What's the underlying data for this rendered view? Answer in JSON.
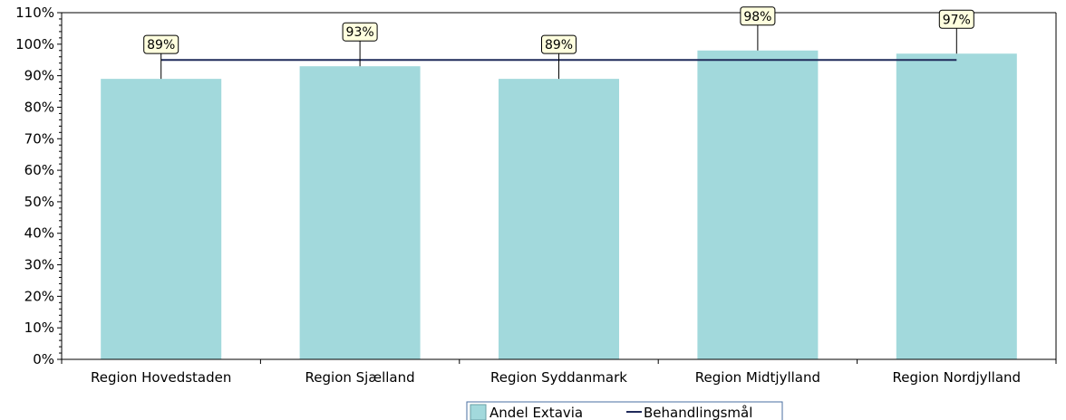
{
  "chart_data": {
    "type": "bar",
    "categories": [
      "Region Hovedstaden",
      "Region Sjælland",
      "Region Syddanmark",
      "Region Midtjylland",
      "Region Nordjylland"
    ],
    "series": [
      {
        "name": "Andel Extavia",
        "type": "bar",
        "values": [
          89,
          93,
          89,
          98,
          97
        ],
        "data_labels": [
          "89%",
          "93%",
          "89%",
          "98%",
          "97%"
        ],
        "color": "#a2d9dc"
      },
      {
        "name": "Behandlingsmål",
        "type": "line",
        "values": [
          95,
          95,
          95,
          95,
          95
        ],
        "color": "#1f2a5a"
      }
    ],
    "ylim": [
      0,
      110
    ],
    "yticks": [
      0,
      10,
      20,
      30,
      40,
      50,
      60,
      70,
      80,
      90,
      100,
      110
    ],
    "ytick_labels": [
      "0%",
      "10%",
      "20%",
      "30%",
      "40%",
      "50%",
      "60%",
      "70%",
      "80%",
      "90%",
      "100%",
      "110%"
    ],
    "grid": false,
    "legend_position": "bottom-center"
  }
}
